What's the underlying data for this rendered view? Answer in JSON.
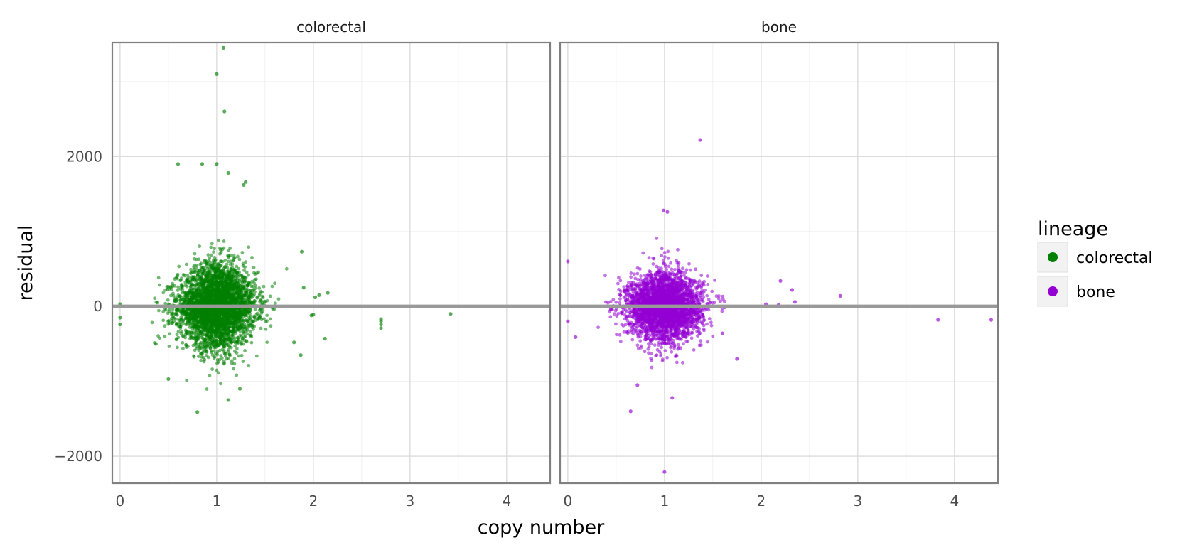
{
  "chart_data": {
    "type": "scatter",
    "xlabel": "copy number",
    "ylabel": "residual",
    "xlim": [
      -0.08,
      4.45
    ],
    "ylim": [
      -2360,
      3520
    ],
    "x_ticks": [
      0,
      1,
      2,
      3,
      4
    ],
    "x_tick_labels": [
      "0",
      "1",
      "2",
      "3",
      "4"
    ],
    "y_ticks": [
      -2000,
      0,
      2000
    ],
    "y_tick_labels": [
      "−2000",
      "0",
      "2000"
    ],
    "grid": true,
    "hline": 0,
    "legend": {
      "title": "lineage",
      "placement": "right",
      "entries": [
        {
          "label": "colorectal",
          "color": "#008000"
        },
        {
          "label": "bone",
          "color": "#9400d3"
        }
      ]
    },
    "panels": [
      {
        "strip_label": "colorectal",
        "color": "#008000",
        "bulk": {
          "center_x": 1.0,
          "sd_x": 0.2,
          "sd_y": 230,
          "n": 3400
        },
        "points": [
          [
            0.0,
            30
          ],
          [
            0.0,
            -150
          ],
          [
            0.0,
            -240
          ],
          [
            1.0,
            3100
          ],
          [
            1.07,
            3450
          ],
          [
            1.08,
            2600
          ],
          [
            0.6,
            1900
          ],
          [
            0.85,
            1900
          ],
          [
            1.0,
            1900
          ],
          [
            1.12,
            1780
          ],
          [
            1.28,
            1620
          ],
          [
            1.3,
            1660
          ],
          [
            0.8,
            -1410
          ],
          [
            1.12,
            -1250
          ],
          [
            1.24,
            -1100
          ],
          [
            0.5,
            -970
          ],
          [
            0.37,
            -500
          ],
          [
            1.88,
            730
          ],
          [
            2.15,
            180
          ],
          [
            2.06,
            150
          ],
          [
            2.02,
            120
          ],
          [
            1.9,
            250
          ],
          [
            2.12,
            -430
          ],
          [
            1.87,
            -650
          ],
          [
            1.8,
            -480
          ],
          [
            1.98,
            -120
          ],
          [
            2.0,
            -110
          ],
          [
            2.7,
            -170
          ],
          [
            2.7,
            -200
          ],
          [
            2.7,
            -240
          ],
          [
            2.7,
            -290
          ],
          [
            3.42,
            -100
          ]
        ]
      },
      {
        "strip_label": "bone",
        "color": "#9400d3",
        "bulk": {
          "center_x": 1.0,
          "sd_x": 0.19,
          "sd_y": 190,
          "n": 3000
        },
        "points": [
          [
            0.0,
            600
          ],
          [
            0.0,
            -200
          ],
          [
            0.08,
            -410
          ],
          [
            1.37,
            2220
          ],
          [
            0.99,
            1280
          ],
          [
            1.03,
            1260
          ],
          [
            0.65,
            -1400
          ],
          [
            1.08,
            -1220
          ],
          [
            1.0,
            -2210
          ],
          [
            0.72,
            -1050
          ],
          [
            2.2,
            340
          ],
          [
            2.32,
            220
          ],
          [
            2.35,
            60
          ],
          [
            2.82,
            140
          ],
          [
            2.18,
            20
          ],
          [
            2.28,
            0
          ],
          [
            2.05,
            30
          ],
          [
            1.75,
            -700
          ],
          [
            1.6,
            -360
          ],
          [
            3.83,
            -180
          ],
          [
            4.38,
            -180
          ]
        ]
      }
    ]
  }
}
